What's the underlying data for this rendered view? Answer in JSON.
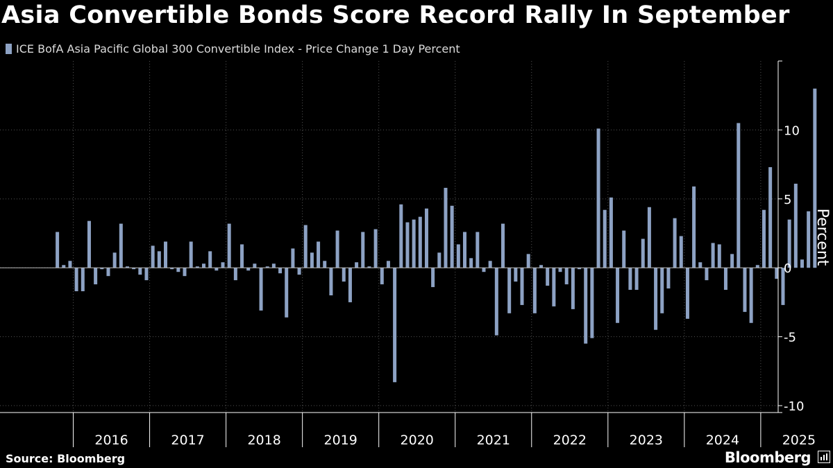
{
  "title": "Asia Convertible Bonds Score Record Rally In September",
  "footer": {
    "source": "Source: Bloomberg",
    "brand": "Bloomberg"
  },
  "colors": {
    "bar": "#8da2c4",
    "background": "#000000",
    "grid": "#555555",
    "text": "#ffffff"
  },
  "chart_data": {
    "type": "bar",
    "title": "Asia Convertible Bonds Score Record Rally In September",
    "series_name": "ICE BofA Asia Pacific Global 300 Convertible Index - Price Change 1 Day Percent",
    "ylabel": "Percent",
    "xlabel": "",
    "ylim": [
      -10.5,
      15
    ],
    "yticks": [
      -10,
      -5,
      0,
      5,
      10
    ],
    "year_labels": [
      "2016",
      "2017",
      "2018",
      "2019",
      "2020",
      "2021",
      "2022",
      "2023",
      "2024",
      "2025"
    ],
    "x_start": "2015-10",
    "bar_interval": "monthly",
    "values": [
      2.6,
      0.2,
      0.5,
      -1.7,
      -1.7,
      3.4,
      -1.2,
      -0.1,
      -0.6,
      1.1,
      3.2,
      0.1,
      -0.1,
      -0.5,
      -0.9,
      1.6,
      1.2,
      1.9,
      -0.1,
      -0.3,
      -0.6,
      1.9,
      0.1,
      0.3,
      1.2,
      -0.2,
      0.4,
      3.2,
      -0.9,
      1.7,
      -0.2,
      0.3,
      -3.1,
      0.1,
      0.3,
      -0.4,
      -3.6,
      1.4,
      -0.5,
      3.1,
      1.1,
      1.9,
      0.5,
      -2.0,
      2.7,
      -1.0,
      -2.5,
      0.4,
      2.6,
      0.1,
      2.8,
      -1.2,
      0.5,
      -8.3,
      4.6,
      3.3,
      3.5,
      3.7,
      4.3,
      -1.4,
      1.1,
      5.8,
      4.5,
      1.7,
      2.6,
      0.7,
      2.6,
      -0.3,
      0.5,
      -4.9,
      3.2,
      -3.3,
      -1.0,
      -2.7,
      1.0,
      -3.3,
      0.2,
      -1.3,
      -2.8,
      -0.3,
      -1.2,
      -3.0,
      -0.1,
      -5.5,
      -5.1,
      10.1,
      4.2,
      5.1,
      -4.0,
      2.7,
      -1.6,
      -1.6,
      2.1,
      4.4,
      -4.5,
      -3.3,
      -1.5,
      3.6,
      2.3,
      -3.7,
      5.9,
      0.4,
      -0.9,
      1.8,
      1.7,
      -1.6,
      1.0,
      10.5,
      -3.2,
      -4.0,
      0.2,
      4.2,
      7.3,
      -0.8,
      -2.7,
      3.5,
      6.1,
      0.6,
      4.1,
      13.0
    ]
  }
}
